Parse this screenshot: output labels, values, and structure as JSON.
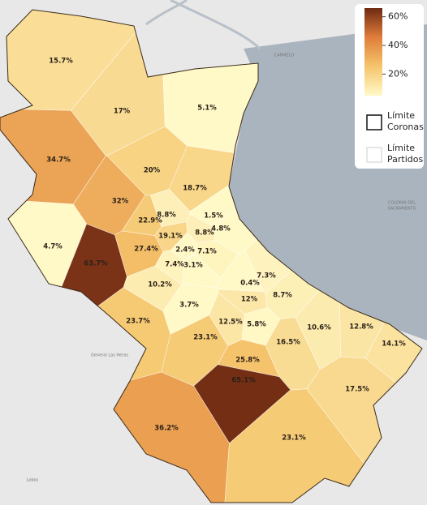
{
  "chart_data": {
    "type": "choropleth",
    "values": [
      15.7,
      17,
      5.1,
      34.7,
      20,
      18.7,
      32,
      22.9,
      8.8,
      1.5,
      4.8,
      4.7,
      19.1,
      8.8,
      27.4,
      2.4,
      7.1,
      63.7,
      7.4,
      3.1,
      10.2,
      7.3,
      0.4,
      12,
      8.7,
      3.7,
      23.7,
      12.5,
      5.8,
      10.6,
      12.8,
      23.1,
      16.5,
      14.1,
      25.8,
      65.1,
      17.5,
      36.2,
      23.1
    ],
    "value_labels": [
      "15.7%",
      "17%",
      "5.1%",
      "34.7%",
      "20%",
      "18.7%",
      "32%",
      "22.9%",
      "8.8%",
      "1.5%",
      "4.8%",
      "4.7%",
      "19.1%",
      "8.8%",
      "27.4%",
      "2.4%",
      "7.1%",
      "63.7%",
      "7.4%",
      "3.1%",
      "10.2%",
      "7.3%",
      "0.4%",
      "12%",
      "8.7%",
      "3.7%",
      "23.7%",
      "12.5%",
      "5.8%",
      "10.6%",
      "12.8%",
      "23.1%",
      "16.5%",
      "14.1%",
      "25.8%",
      "65.1%",
      "17.5%",
      "36.2%",
      "23.1%"
    ],
    "clim": [
      5,
      66
    ],
    "cticks": [
      {
        "value": 20,
        "label": "20%"
      },
      {
        "value": 40,
        "label": "40%"
      },
      {
        "value": 60,
        "label": "60%"
      }
    ],
    "colors": [
      "#fff9c8",
      "#f5c56c",
      "#e07d3a",
      "#6e2a12"
    ],
    "legend": [
      {
        "lines": [
          "Límite",
          "Coronas"
        ],
        "color": "#111111"
      },
      {
        "lines": [
          "Límite",
          "Partidos"
        ],
        "color": "#dddddd"
      }
    ],
    "places": [
      "CARMELO",
      "COLONIA DEL",
      "SACRAMENTO",
      "General Las Heras",
      "Lobos"
    ]
  }
}
